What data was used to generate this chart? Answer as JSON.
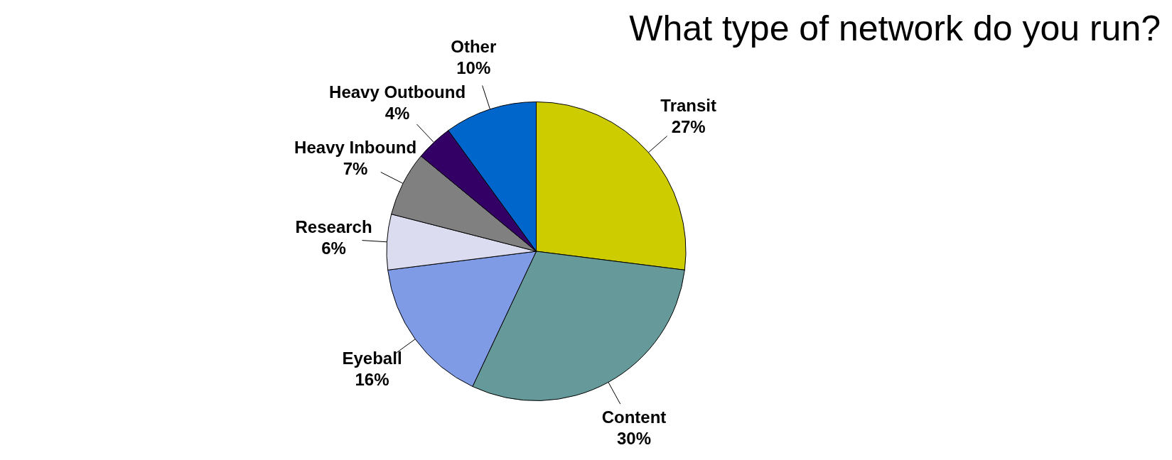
{
  "chart_data": {
    "type": "pie",
    "title": "What type of network do you run?",
    "categories": [
      "Transit",
      "Content",
      "Eyeball",
      "Research",
      "Heavy Inbound",
      "Heavy Outbound",
      "Other"
    ],
    "values": [
      27,
      30,
      16,
      6,
      7,
      4,
      10
    ],
    "colors": [
      "#cccc00",
      "#669999",
      "#7f9be6",
      "#dcdcf0",
      "#808080",
      "#330066",
      "#0066cc"
    ],
    "value_labels": [
      "27%",
      "30%",
      "16%",
      "6%",
      "7%",
      "4%",
      "10%"
    ],
    "legend": false
  }
}
